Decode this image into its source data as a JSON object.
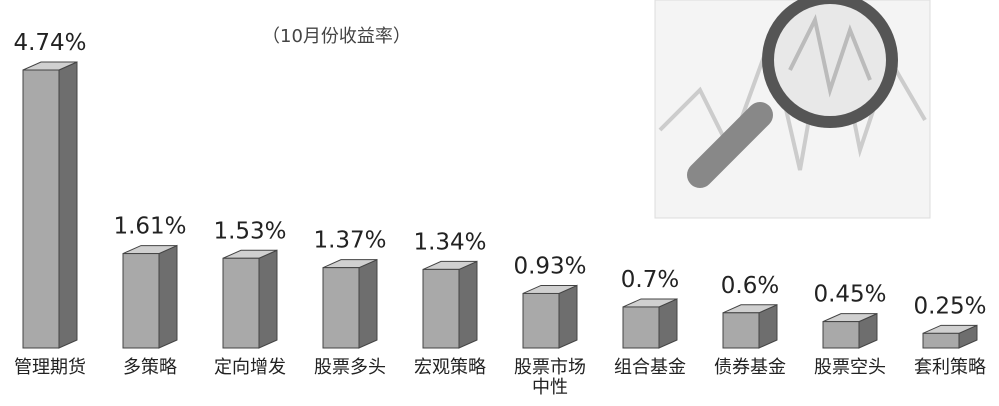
{
  "chart_data": {
    "type": "bar3d",
    "subtitle": "（10月份收益率）",
    "categories": [
      "管理期货",
      "多策略",
      "定向增发",
      "股票多头",
      "宏观策略",
      "股票市场中性",
      "组合基金",
      "债券基金",
      "股票空头",
      "套利策略"
    ],
    "values": [
      4.74,
      1.61,
      1.53,
      1.37,
      1.34,
      0.93,
      0.7,
      0.6,
      0.45,
      0.25
    ],
    "value_labels": [
      "4.74%",
      "1.61%",
      "1.53%",
      "1.37%",
      "1.34%",
      "0.93%",
      "0.7%",
      "0.6%",
      "0.45%",
      "0.25%"
    ],
    "color": "#a9a9a9"
  }
}
